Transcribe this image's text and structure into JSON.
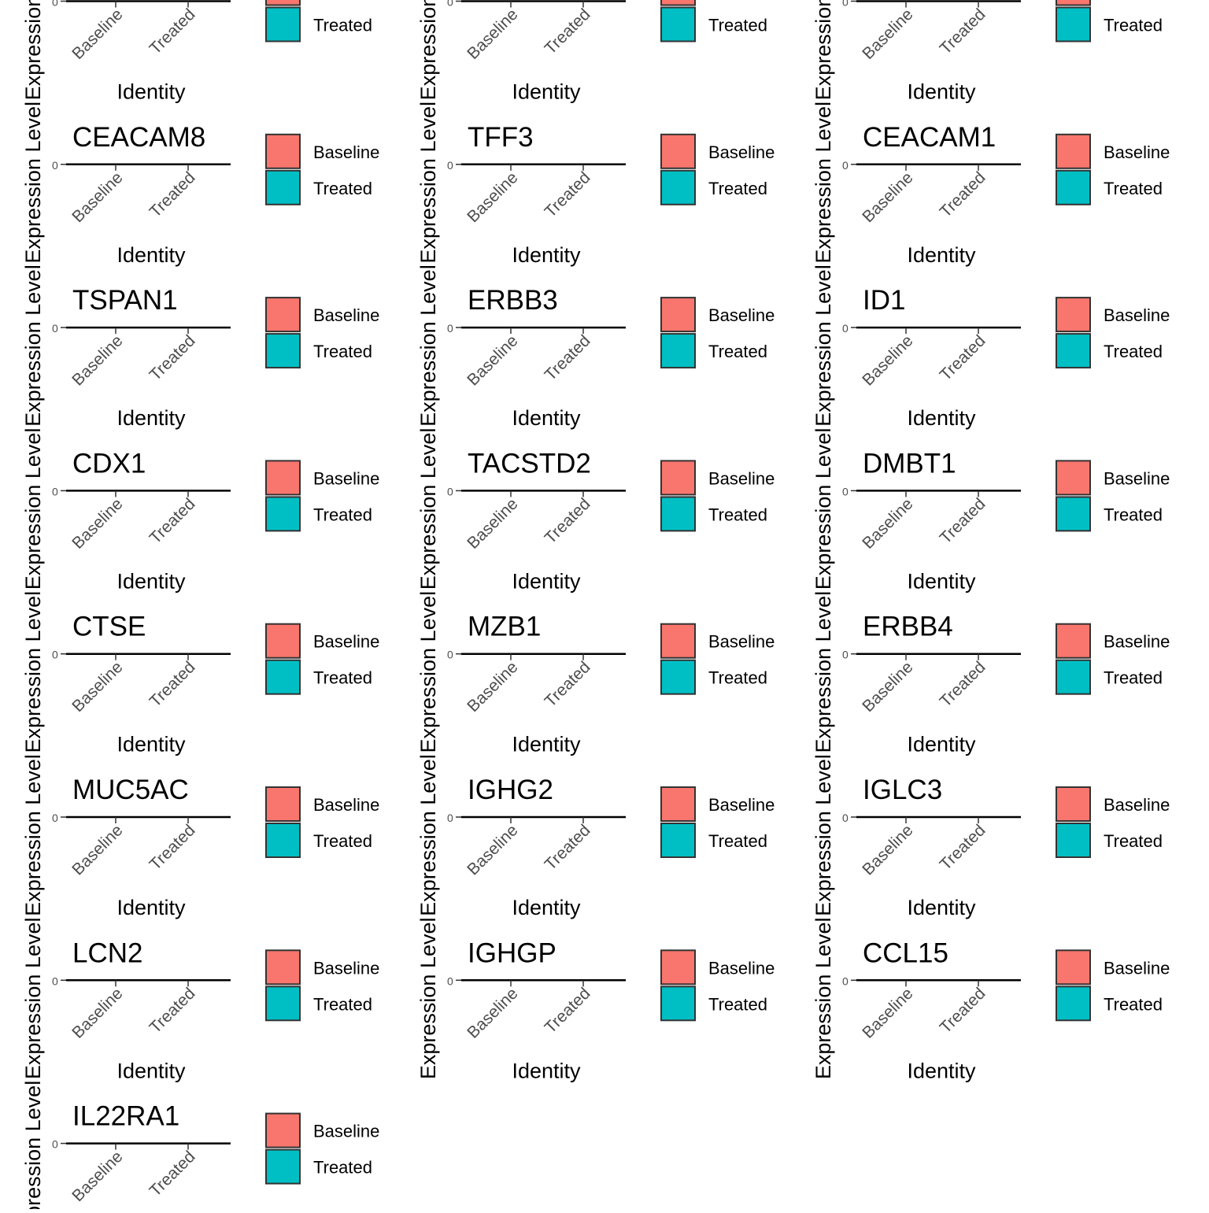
{
  "figure": {
    "x_axis_label": "Identity",
    "y_axis_label": "Expression Level",
    "legend": {
      "position": "right"
    }
  },
  "chart_data": {
    "type": "violin",
    "x_label": "Identity",
    "y_label": "Expression Level",
    "groups": [
      "Baseline",
      "Treated"
    ],
    "group_colors": [
      "#F8766D",
      "#00BFC4"
    ],
    "legend": {
      "entries": [
        "Baseline",
        "Treated"
      ],
      "placement": "right"
    },
    "grid": false,
    "panels": [
      {
        "title": "",
        "groups": [
          "Baseline",
          "Treated"
        ]
      },
      {
        "title": "",
        "groups": [
          "Baseline",
          "Treated"
        ]
      },
      {
        "title": "",
        "groups": [
          "Baseline",
          "Treated"
        ]
      },
      {
        "title": "CEACAM8",
        "groups": [
          "Baseline",
          "Treated"
        ]
      },
      {
        "title": "TFF3",
        "groups": [
          "Baseline",
          "Treated"
        ]
      },
      {
        "title": "CEACAM1",
        "groups": [
          "Baseline",
          "Treated"
        ]
      },
      {
        "title": "TSPAN1",
        "groups": [
          "Baseline",
          "Treated"
        ]
      },
      {
        "title": "ERBB3",
        "groups": [
          "Baseline",
          "Treated"
        ]
      },
      {
        "title": "ID1",
        "groups": [
          "Baseline",
          "Treated"
        ]
      },
      {
        "title": "CDX1",
        "groups": [
          "Baseline",
          "Treated"
        ]
      },
      {
        "title": "TACSTD2",
        "groups": [
          "Baseline",
          "Treated"
        ]
      },
      {
        "title": "DMBT1",
        "groups": [
          "Baseline",
          "Treated"
        ]
      },
      {
        "title": "CTSE",
        "groups": [
          "Baseline",
          "Treated"
        ]
      },
      {
        "title": "MZB1",
        "groups": [
          "Baseline",
          "Treated"
        ]
      },
      {
        "title": "ERBB4",
        "groups": [
          "Baseline",
          "Treated"
        ]
      },
      {
        "title": "MUC5AC",
        "groups": [
          "Baseline",
          "Treated"
        ]
      },
      {
        "title": "IGHG2",
        "groups": [
          "Baseline",
          "Treated"
        ]
      },
      {
        "title": "IGLC3",
        "groups": [
          "Baseline",
          "Treated"
        ]
      },
      {
        "title": "LCN2",
        "groups": [
          "Baseline",
          "Treated"
        ]
      },
      {
        "title": "IGHGP",
        "groups": [
          "Baseline",
          "Treated"
        ]
      },
      {
        "title": "CCL15",
        "groups": [
          "Baseline",
          "Treated"
        ]
      },
      {
        "title": "IL22RA1",
        "groups": [
          "Baseline",
          "Treated"
        ]
      }
    ]
  }
}
